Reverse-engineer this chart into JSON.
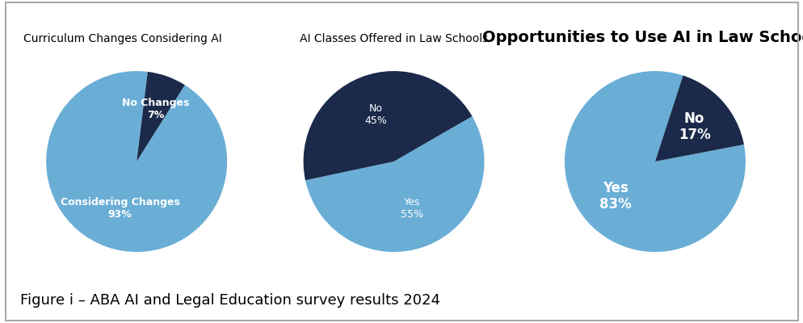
{
  "chart1": {
    "title": "Curriculum Changes Considering AI",
    "title_fontsize": 10,
    "title_fontweight": "normal",
    "slices": [
      93,
      7
    ],
    "labels": [
      [
        "Considering Changes",
        "93%"
      ],
      [
        "No Changes",
        "7%"
      ]
    ],
    "colors": [
      "#6aaed6",
      "#1b2a4a"
    ],
    "startangle": 83,
    "label_radii": [
      0.55,
      0.62
    ],
    "label_colors": [
      "white",
      "white"
    ],
    "label_fontsizes": [
      9,
      9
    ],
    "label_fontweights": [
      "bold",
      "bold"
    ]
  },
  "chart2": {
    "title": "AI Classes Offered in Law Schools",
    "title_fontsize": 10,
    "title_fontweight": "normal",
    "slices": [
      55,
      45
    ],
    "labels": [
      [
        "Yes",
        "55%"
      ],
      [
        "No",
        "45%"
      ]
    ],
    "colors": [
      "#6aaed6",
      "#1b2a4a"
    ],
    "startangle": 192,
    "label_radii": [
      0.55,
      0.55
    ],
    "label_colors": [
      "white",
      "white"
    ],
    "label_fontsizes": [
      9,
      9
    ],
    "label_fontweights": [
      "normal",
      "normal"
    ]
  },
  "chart3": {
    "title": "Opportunities to Use AI in Law Schools",
    "title_fontsize": 14,
    "title_fontweight": "bold",
    "slices": [
      83,
      17
    ],
    "labels": [
      [
        "Yes",
        "83%"
      ],
      [
        "No",
        "17%"
      ]
    ],
    "colors": [
      "#6aaed6",
      "#1b2a4a"
    ],
    "startangle": 72,
    "label_radii": [
      0.58,
      0.58
    ],
    "label_colors": [
      "white",
      "white"
    ],
    "label_fontsizes": [
      12,
      12
    ],
    "label_fontweights": [
      "bold",
      "bold"
    ]
  },
  "caption": "Figure i – ABA AI and Legal Education survey results 2024",
  "caption_fontsize": 13,
  "bg_color": "#ffffff",
  "border_color": "#aaaaaa"
}
